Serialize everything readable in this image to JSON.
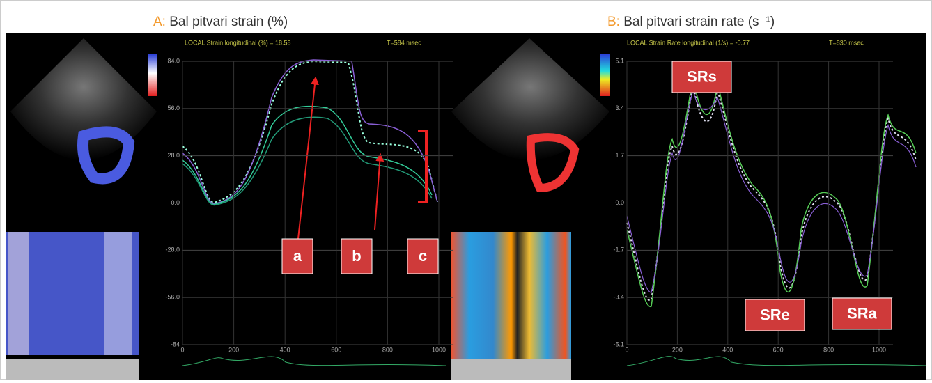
{
  "panels": [
    {
      "letter": "A:",
      "title": "Bal pitvari strain (%)",
      "header": "LOCAL  Strain longitudinal (%) = 18.58",
      "time": "T=584 msec",
      "yticks": [
        "84.0",
        "56.0",
        "28.0",
        "0.0",
        "-28.0",
        "-56.0",
        "-84"
      ],
      "xticks": [
        "0",
        "200",
        "400",
        "600",
        "800",
        "1000"
      ],
      "annotations": [
        "a",
        "b",
        "c"
      ]
    },
    {
      "letter": "B:",
      "title": "Bal pitvari strain rate (s⁻¹)",
      "header": "LOCAL  Strain Rate longitudinal (1/s) = -0.77",
      "time": "T=830 msec",
      "yticks": [
        "5.1",
        "3.4",
        "1.7",
        "0.0",
        "-1.7",
        "-3.4",
        "-5.1"
      ],
      "xticks": [
        "0",
        "200",
        "400",
        "600",
        "800",
        "1000"
      ],
      "annotations": [
        "SRs",
        "SRe",
        "SRa"
      ]
    }
  ]
}
